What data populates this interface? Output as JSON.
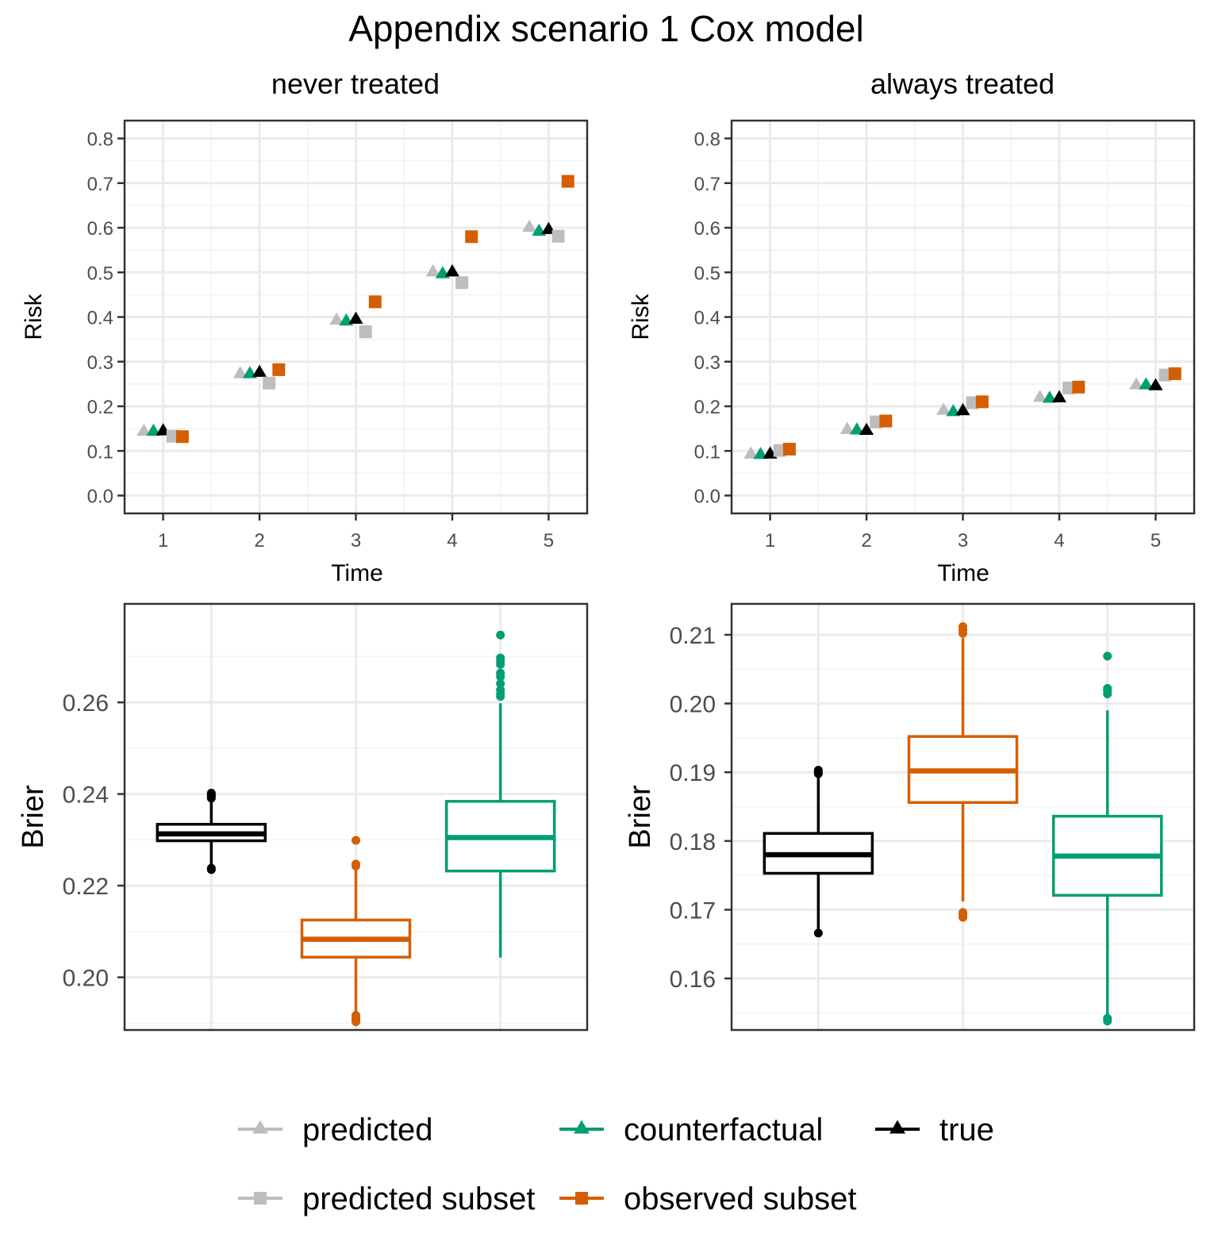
{
  "title": "Appendix scenario 1 Cox model",
  "colors": {
    "predicted": "#bdbdbd",
    "counterfactual": "#009e73",
    "true": "#000000",
    "predicted_subset": "#bdbdbd",
    "observed_subset": "#d55e00",
    "grid_major": "#ebebeb",
    "grid_minor": "#f2f2f2",
    "panel_border": "#333333",
    "tick_label": "#4d4d4d"
  },
  "legend": {
    "items": [
      {
        "key": "predicted",
        "label": "predicted",
        "shape": "triangle"
      },
      {
        "key": "counterfactual",
        "label": "counterfactual",
        "shape": "triangle"
      },
      {
        "key": "true",
        "label": "true",
        "shape": "triangle"
      },
      {
        "key": "predicted_subset",
        "label": "predicted subset",
        "shape": "square"
      },
      {
        "key": "observed_subset",
        "label": "observed subset",
        "shape": "square"
      }
    ]
  },
  "chart_data": [
    {
      "id": "risk-never",
      "type": "scatter",
      "title": "never treated",
      "xlabel": "Time",
      "ylabel": "Risk",
      "x": [
        1,
        2,
        3,
        4,
        5
      ],
      "xticks": [
        "1",
        "2",
        "3",
        "4",
        "5"
      ],
      "ylim": [
        -0.04,
        0.84
      ],
      "yticks": [
        "0.0",
        "0.1",
        "0.2",
        "0.3",
        "0.4",
        "0.5",
        "0.6",
        "0.7",
        "0.8"
      ],
      "series": [
        {
          "name": "predicted",
          "key": "predicted",
          "shape": "triangle",
          "offset": -0.2,
          "values": [
            0.146,
            0.275,
            0.395,
            0.503,
            0.603
          ]
        },
        {
          "name": "counterfactual",
          "key": "counterfactual",
          "shape": "triangle",
          "offset": -0.1,
          "values": [
            0.146,
            0.275,
            0.393,
            0.499,
            0.594
          ]
        },
        {
          "name": "true",
          "key": "true",
          "shape": "triangle",
          "offset": 0.0,
          "values": [
            0.147,
            0.278,
            0.397,
            0.503,
            0.598
          ]
        },
        {
          "name": "predicted subset",
          "key": "predicted_subset",
          "shape": "square",
          "offset": 0.1,
          "values": [
            0.133,
            0.252,
            0.367,
            0.477,
            0.581
          ]
        },
        {
          "name": "observed subset",
          "key": "observed_subset",
          "shape": "square",
          "offset": 0.2,
          "values": [
            0.132,
            0.282,
            0.434,
            0.58,
            0.704
          ]
        }
      ]
    },
    {
      "id": "risk-always",
      "type": "scatter",
      "title": "always treated",
      "xlabel": "Time",
      "ylabel": "Risk",
      "x": [
        1,
        2,
        3,
        4,
        5
      ],
      "xticks": [
        "1",
        "2",
        "3",
        "4",
        "5"
      ],
      "ylim": [
        -0.04,
        0.84
      ],
      "yticks": [
        "0.0",
        "0.1",
        "0.2",
        "0.3",
        "0.4",
        "0.5",
        "0.6",
        "0.7",
        "0.8"
      ],
      "series": [
        {
          "name": "predicted",
          "key": "predicted",
          "shape": "triangle",
          "offset": -0.2,
          "values": [
            0.095,
            0.15,
            0.193,
            0.222,
            0.25
          ]
        },
        {
          "name": "counterfactual",
          "key": "counterfactual",
          "shape": "triangle",
          "offset": -0.1,
          "values": [
            0.094,
            0.149,
            0.19,
            0.22,
            0.25
          ]
        },
        {
          "name": "true",
          "key": "true",
          "shape": "triangle",
          "offset": 0.0,
          "values": [
            0.095,
            0.148,
            0.192,
            0.221,
            0.248
          ]
        },
        {
          "name": "predicted subset",
          "key": "predicted_subset",
          "shape": "square",
          "offset": 0.1,
          "values": [
            0.101,
            0.165,
            0.208,
            0.241,
            0.27
          ]
        },
        {
          "name": "observed subset",
          "key": "observed_subset",
          "shape": "square",
          "offset": 0.2,
          "values": [
            0.104,
            0.167,
            0.21,
            0.243,
            0.273
          ]
        }
      ]
    },
    {
      "id": "brier-never",
      "type": "box",
      "ylabel": "Brier",
      "ylim": [
        0.1885,
        0.2815
      ],
      "yticks": [
        "0.20",
        "0.22",
        "0.24",
        "0.26"
      ],
      "boxes": [
        {
          "key": "true",
          "pos": 1,
          "whisker_low": 0.224,
          "q1": 0.2298,
          "median": 0.2313,
          "q3": 0.2334,
          "whisker_high": 0.2388,
          "outliers": [
            0.2235,
            0.2238,
            0.2391,
            0.2394,
            0.2397,
            0.2399,
            0.2402
          ]
        },
        {
          "key": "observed_subset",
          "pos": 2,
          "whisker_low": 0.192,
          "q1": 0.2044,
          "median": 0.2083,
          "q3": 0.2125,
          "whisker_high": 0.2239,
          "outliers": [
            0.1903,
            0.1907,
            0.191,
            0.1913,
            0.1917,
            0.2243,
            0.2247,
            0.2299
          ]
        },
        {
          "key": "counterfactual",
          "pos": 3,
          "whisker_low": 0.2043,
          "q1": 0.2232,
          "median": 0.2305,
          "q3": 0.2384,
          "whisker_high": 0.2598,
          "outliers": [
            0.2613,
            0.2618,
            0.2627,
            0.2641,
            0.2656,
            0.2664,
            0.2683,
            0.2691,
            0.2697,
            0.2747
          ]
        }
      ]
    },
    {
      "id": "brier-always",
      "type": "box",
      "ylabel": "Brier",
      "ylim": [
        0.1525,
        0.2145
      ],
      "yticks": [
        "0.16",
        "0.17",
        "0.18",
        "0.19",
        "0.20",
        "0.21"
      ],
      "boxes": [
        {
          "key": "true",
          "pos": 1,
          "whisker_low": 0.1667,
          "q1": 0.1753,
          "median": 0.178,
          "q3": 0.1811,
          "whisker_high": 0.1895,
          "outliers": [
            0.1666,
            0.1898,
            0.19,
            0.1903
          ]
        },
        {
          "key": "observed_subset",
          "pos": 2,
          "whisker_low": 0.1712,
          "q1": 0.1856,
          "median": 0.1902,
          "q3": 0.1952,
          "whisker_high": 0.2095,
          "outliers": [
            0.1689,
            0.1693,
            0.1696,
            0.2102,
            0.2107,
            0.2112
          ]
        },
        {
          "key": "counterfactual",
          "pos": 3,
          "whisker_low": 0.1545,
          "q1": 0.1721,
          "median": 0.1778,
          "q3": 0.1836,
          "whisker_high": 0.199,
          "outliers": [
            0.1538,
            0.1542,
            0.2014,
            0.2019,
            0.2022,
            0.2069
          ]
        }
      ]
    }
  ]
}
